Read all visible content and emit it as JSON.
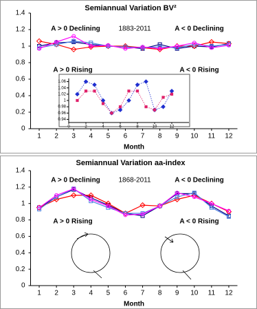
{
  "chart_data": [
    {
      "type": "line",
      "title": "Semiannual Variation BV²",
      "annotation": "1883-2011",
      "x_label": "Month",
      "categories": [
        "1",
        "2",
        "3",
        "4",
        "5",
        "6",
        "7",
        "8",
        "9",
        "10",
        "11",
        "12"
      ],
      "ylim": [
        0,
        1.4
      ],
      "yticks": [
        0,
        0.2,
        0.4,
        0.6,
        0.8,
        1,
        1.2,
        1.4
      ],
      "series": [
        {
          "name": "A > 0 Declining",
          "color": "#000080",
          "marker": "square",
          "values": [
            1.0,
            1.04,
            1.05,
            1.02,
            1.0,
            0.99,
            0.97,
            1.02,
            0.97,
            1.0,
            0.99,
            1.03
          ]
        },
        {
          "name": "A < 0 Declining",
          "color": "#ff0000",
          "marker": "diamond",
          "values": [
            1.06,
            1.02,
            0.96,
            0.99,
            1.0,
            1.0,
            0.98,
            0.96,
            1.0,
            1.0,
            1.05,
            1.03
          ]
        },
        {
          "name": "A > 0 Rising",
          "color": "#4a7fe0",
          "marker": "square",
          "values": [
            0.98,
            1.02,
            1.06,
            1.04,
            1.0,
            0.99,
            0.98,
            0.99,
            0.98,
            1.02,
            1.0,
            1.02
          ]
        },
        {
          "name": "A < 0 Rising",
          "color": "#ff00ff",
          "marker": "circle",
          "values": [
            0.97,
            1.05,
            1.12,
            1.0,
            1.01,
            0.97,
            0.99,
            0.97,
            1.0,
            1.04,
            0.98,
            1.01
          ]
        }
      ]
    },
    {
      "type": "scatter",
      "x": [
        1,
        2,
        3,
        4,
        5,
        6,
        7,
        8,
        9,
        10,
        11,
        12
      ],
      "xlim": [
        0,
        14
      ],
      "xticks": [
        0,
        2,
        4,
        6,
        8,
        10,
        12
      ],
      "ylim": [
        0.93,
        1.07
      ],
      "yticks": [
        0.94,
        0.96,
        0.98,
        1,
        1.02,
        1.04,
        1.06
      ],
      "series": [
        {
          "color": "#1f2fd0",
          "marker": "diamond",
          "line_style": "dotted",
          "values": [
            1.02,
            1.06,
            1.05,
            1.0,
            0.96,
            0.97,
            1.0,
            1.05,
            1.06,
            0.97,
            0.98,
            1.03
          ]
        },
        {
          "color": "#e0206a",
          "marker": "square",
          "line_style": "dotted",
          "values": [
            1.0,
            1.03,
            1.03,
            0.99,
            0.96,
            0.98,
            1.03,
            1.03,
            0.98,
            0.97,
            1.01,
            1.02
          ]
        }
      ]
    },
    {
      "type": "line",
      "title": "Semiannual Variation aa-index",
      "annotation": "1868-2011",
      "x_label": "Month",
      "categories": [
        "1",
        "2",
        "3",
        "4",
        "5",
        "6",
        "7",
        "8",
        "9",
        "10",
        "11",
        "12"
      ],
      "ylim": [
        0,
        1.4
      ],
      "yticks": [
        0,
        0.2,
        0.4,
        0.6,
        0.8,
        1,
        1.2,
        1.4
      ],
      "series": [
        {
          "name": "A > 0 Declining",
          "color": "#000080",
          "marker": "square",
          "values": [
            0.95,
            1.08,
            1.17,
            1.07,
            0.98,
            0.88,
            0.85,
            0.97,
            1.12,
            1.12,
            0.97,
            0.85
          ]
        },
        {
          "name": "A < 0 Declining",
          "color": "#ff0000",
          "marker": "diamond",
          "values": [
            0.95,
            1.05,
            1.1,
            1.1,
            1.0,
            0.88,
            0.98,
            0.97,
            1.05,
            1.1,
            1.0,
            0.9
          ]
        },
        {
          "name": "A > 0 Rising",
          "color": "#4a7fe0",
          "marker": "square",
          "values": [
            0.93,
            1.08,
            1.18,
            1.03,
            0.95,
            0.88,
            0.88,
            0.97,
            1.08,
            1.13,
            0.95,
            0.84
          ]
        },
        {
          "name": "A < 0 Rising",
          "color": "#ff00ff",
          "marker": "circle",
          "values": [
            0.95,
            1.1,
            1.18,
            1.05,
            0.97,
            0.86,
            0.87,
            0.97,
            1.13,
            1.08,
            1.0,
            0.91
          ]
        }
      ]
    }
  ]
}
